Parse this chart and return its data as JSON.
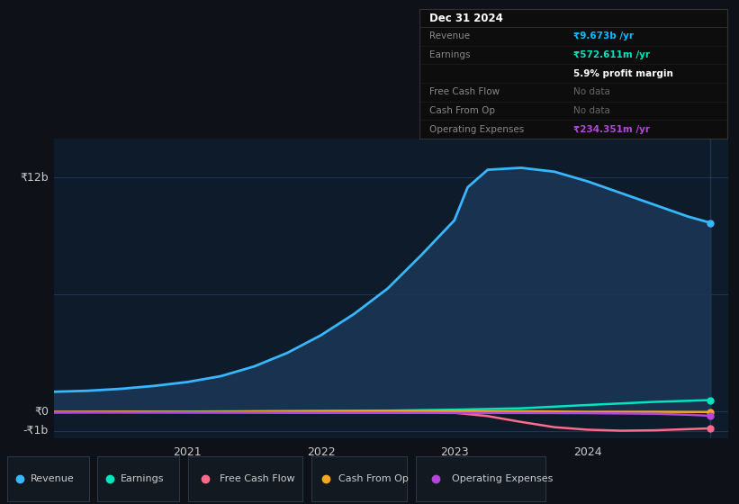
{
  "bg_color": "#0e1117",
  "plot_bg_color": "#0d1b2a",
  "grid_color": "#1e3a5f",
  "text_color": "#aaaaaa",
  "y_label_12b": "₹12b",
  "y_label_0": "₹0",
  "y_label_neg1b": "-₹1b",
  "x_ticks": [
    2021,
    2022,
    2023,
    2024
  ],
  "series": {
    "Revenue": {
      "color": "#38b6ff",
      "fill_color": "#1a3555",
      "x": [
        2020.0,
        2020.25,
        2020.5,
        2020.75,
        2021.0,
        2021.25,
        2021.5,
        2021.75,
        2022.0,
        2022.25,
        2022.5,
        2022.75,
        2023.0,
        2023.1,
        2023.25,
        2023.5,
        2023.75,
        2024.0,
        2024.25,
        2024.5,
        2024.75,
        2024.92
      ],
      "y": [
        1000000000.0,
        1050000000.0,
        1150000000.0,
        1300000000.0,
        1500000000.0,
        1800000000.0,
        2300000000.0,
        3000000000.0,
        3900000000.0,
        5000000000.0,
        6300000000.0,
        8000000000.0,
        9800000000.0,
        11500000000.0,
        12400000000.0,
        12500000000.0,
        12300000000.0,
        11800000000.0,
        11200000000.0,
        10600000000.0,
        10000000000.0,
        9673000000.0
      ]
    },
    "Earnings": {
      "color": "#00e5c0",
      "x": [
        2020.0,
        2020.5,
        2021.0,
        2021.5,
        2022.0,
        2022.5,
        2023.0,
        2023.5,
        2024.0,
        2024.5,
        2024.92
      ],
      "y": [
        -50000000.0,
        -30000000.0,
        -20000000.0,
        0.0,
        20000000.0,
        30000000.0,
        80000000.0,
        150000000.0,
        320000000.0,
        480000000.0,
        572600000.0
      ]
    },
    "Free Cash Flow": {
      "color": "#ff6b8a",
      "x": [
        2020.0,
        2020.5,
        2021.0,
        2021.5,
        2022.0,
        2022.5,
        2023.0,
        2023.25,
        2023.5,
        2023.75,
        2024.0,
        2024.25,
        2024.5,
        2024.75,
        2024.92
      ],
      "y": [
        -40000000.0,
        -40000000.0,
        -50000000.0,
        -60000000.0,
        -70000000.0,
        -70000000.0,
        -80000000.0,
        -250000000.0,
        -550000000.0,
        -820000000.0,
        -950000000.0,
        -1000000000.0,
        -980000000.0,
        -920000000.0,
        -880000000.0
      ]
    },
    "Cash From Op": {
      "color": "#f5a623",
      "x": [
        2020.0,
        2020.5,
        2021.0,
        2021.5,
        2022.0,
        2022.5,
        2023.0,
        2023.5,
        2024.0,
        2024.5,
        2024.92
      ],
      "y": [
        -40000000.0,
        -30000000.0,
        -40000000.0,
        -20000000.0,
        -20000000.0,
        0.0,
        0.0,
        0.0,
        -30000000.0,
        -30000000.0,
        -40000000.0
      ]
    },
    "Operating Expenses": {
      "color": "#b347d9",
      "x": [
        2020.0,
        2020.5,
        2021.0,
        2021.5,
        2022.0,
        2022.5,
        2023.0,
        2023.5,
        2024.0,
        2024.5,
        2024.75,
        2024.92
      ],
      "y": [
        -70000000.0,
        -70000000.0,
        -70000000.0,
        -70000000.0,
        -80000000.0,
        -80000000.0,
        -90000000.0,
        -90000000.0,
        -100000000.0,
        -130000000.0,
        -180000000.0,
        -234400000.0
      ]
    }
  },
  "tooltip": {
    "date": "Dec 31 2024",
    "rows": [
      {
        "label": "Revenue",
        "value": "₹9.673b /yr",
        "value_color": "#00bfff",
        "bold": true
      },
      {
        "label": "Earnings",
        "value": "₹572.611m /yr",
        "value_color": "#00e5c0",
        "bold": true
      },
      {
        "label": "",
        "value": "5.9% profit margin",
        "value_color": "#ffffff",
        "bold": true
      },
      {
        "label": "Free Cash Flow",
        "value": "No data",
        "value_color": "#666666",
        "bold": false
      },
      {
        "label": "Cash From Op",
        "value": "No data",
        "value_color": "#666666",
        "bold": false
      },
      {
        "label": "Operating Expenses",
        "value": "₹234.351m /yr",
        "value_color": "#b347d9",
        "bold": true
      }
    ]
  },
  "legend": [
    {
      "label": "Revenue",
      "color": "#38b6ff"
    },
    {
      "label": "Earnings",
      "color": "#00e5c0"
    },
    {
      "label": "Free Cash Flow",
      "color": "#ff6b8a"
    },
    {
      "label": "Cash From Op",
      "color": "#f5a623"
    },
    {
      "label": "Operating Expenses",
      "color": "#b347d9"
    }
  ],
  "ylim_low": -1400000000.0,
  "ylim_high": 14000000000.0,
  "y_grid_12b": 12000000000.0,
  "y_grid_6b": 6000000000.0,
  "y_grid_0": 0.0,
  "y_grid_neg1b": -1000000000.0
}
